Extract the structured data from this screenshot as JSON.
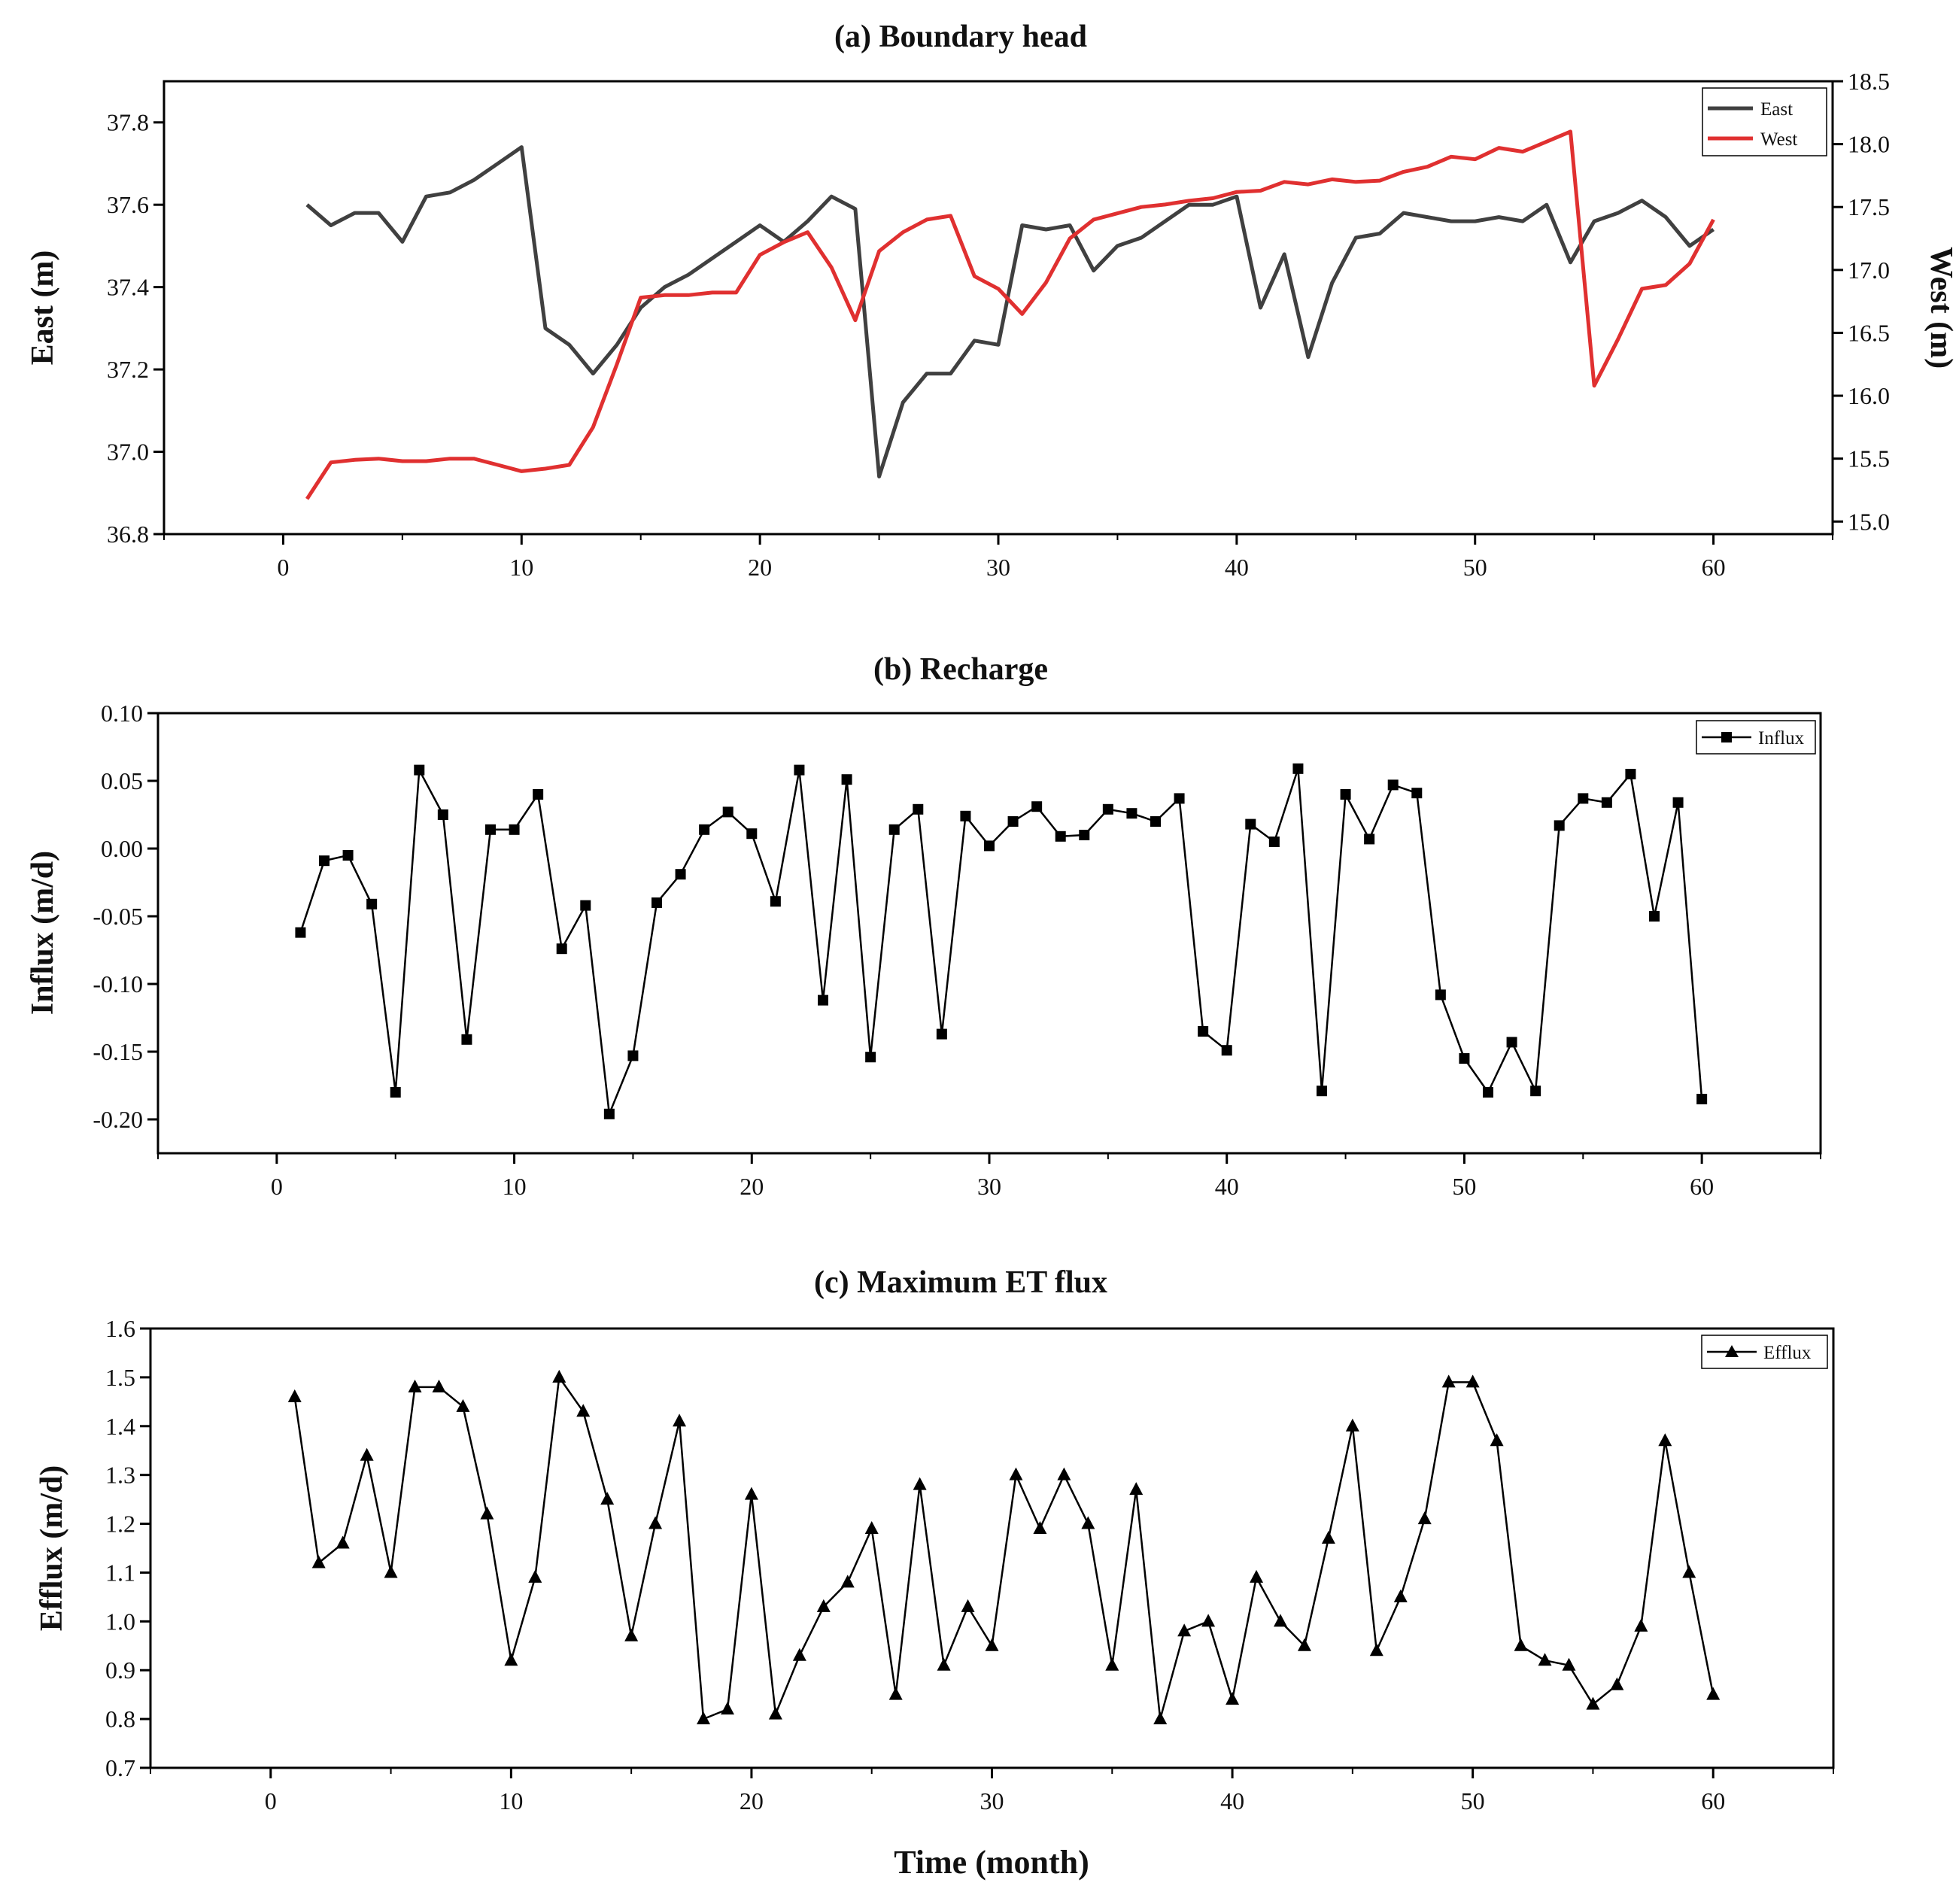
{
  "chart_data": [
    {
      "type": "line",
      "title": "(a) Boundary head",
      "xlabel": "",
      "ylabel": "East (m)",
      "ylabel_right": "West (m)",
      "xlim": [
        -5,
        65
      ],
      "xticks": [
        0,
        10,
        20,
        30,
        40,
        50,
        60
      ],
      "ylim": [
        36.8,
        37.9
      ],
      "yticks": [
        "36.8",
        "37.0",
        "37.2",
        "37.4",
        "37.6",
        "37.8"
      ],
      "ylim_right": [
        14.9,
        18.5
      ],
      "yticks_right": [
        "15.0",
        "15.5",
        "16.0",
        "16.5",
        "17.0",
        "17.5",
        "18.0",
        "18.5"
      ],
      "legend_position": "top-right",
      "x": [
        1,
        2,
        3,
        4,
        5,
        6,
        7,
        8,
        9,
        10,
        11,
        12,
        13,
        14,
        15,
        16,
        17,
        18,
        19,
        20,
        21,
        22,
        23,
        24,
        25,
        26,
        27,
        28,
        29,
        30,
        31,
        32,
        33,
        34,
        35,
        36,
        37,
        38,
        39,
        40,
        41,
        42,
        43,
        44,
        45,
        46,
        47,
        48,
        49,
        50,
        51,
        52,
        53,
        54,
        55,
        56,
        57,
        58,
        59,
        60
      ],
      "series": [
        {
          "name": "East",
          "axis": "left",
          "color": "#404040",
          "values": [
            37.6,
            37.55,
            37.58,
            37.58,
            37.51,
            37.62,
            37.63,
            37.66,
            37.7,
            37.74,
            37.3,
            37.26,
            37.19,
            37.26,
            37.35,
            37.4,
            37.43,
            37.47,
            37.51,
            37.55,
            37.51,
            37.56,
            37.62,
            37.59,
            36.94,
            37.12,
            37.19,
            37.19,
            37.27,
            37.26,
            37.55,
            37.54,
            37.55,
            37.44,
            37.5,
            37.52,
            37.56,
            37.6,
            37.6,
            37.62,
            37.35,
            37.48,
            37.23,
            37.41,
            37.52,
            37.53,
            37.58,
            37.57,
            37.56,
            37.56,
            37.57,
            37.56,
            37.6,
            37.46,
            37.56,
            37.58,
            37.61,
            37.57,
            37.5,
            37.54
          ]
        },
        {
          "name": "West",
          "axis": "right",
          "color": "#e03030",
          "values": [
            15.18,
            15.47,
            15.49,
            15.5,
            15.48,
            15.48,
            15.5,
            15.5,
            15.45,
            15.4,
            15.42,
            15.45,
            15.75,
            16.25,
            16.78,
            16.8,
            16.8,
            16.82,
            16.82,
            17.12,
            17.22,
            17.3,
            17.02,
            16.6,
            17.15,
            17.3,
            17.4,
            17.43,
            16.95,
            16.85,
            16.65,
            16.9,
            17.25,
            17.4,
            17.45,
            17.5,
            17.52,
            17.55,
            17.57,
            17.62,
            17.63,
            17.7,
            17.68,
            17.72,
            17.7,
            17.71,
            17.78,
            17.82,
            17.9,
            17.88,
            17.97,
            17.94,
            18.02,
            18.1,
            16.08,
            16.45,
            16.85,
            16.88,
            17.05,
            17.4
          ]
        }
      ]
    },
    {
      "type": "line",
      "title": "(b) Recharge",
      "xlabel": "",
      "ylabel": "Influx (m/d)",
      "xlim": [
        -5,
        65
      ],
      "xticks": [
        0,
        10,
        20,
        30,
        40,
        50,
        60
      ],
      "ylim": [
        -0.225,
        0.1
      ],
      "yticks": [
        "-0.20",
        "-0.15",
        "-0.10",
        "-0.05",
        "0.00",
        "0.05",
        "0.10"
      ],
      "legend_position": "top-right",
      "x": [
        1,
        2,
        3,
        4,
        5,
        6,
        7,
        8,
        9,
        10,
        11,
        12,
        13,
        14,
        15,
        16,
        17,
        18,
        19,
        20,
        21,
        22,
        23,
        24,
        25,
        26,
        27,
        28,
        29,
        30,
        31,
        32,
        33,
        34,
        35,
        36,
        37,
        38,
        39,
        40,
        41,
        42,
        43,
        44,
        45,
        46,
        47,
        48,
        49,
        50,
        51,
        52,
        53,
        54,
        55,
        56,
        57,
        58,
        59,
        60
      ],
      "series": [
        {
          "name": "Influx",
          "marker": "square",
          "color": "#000000",
          "values": [
            -0.062,
            -0.009,
            -0.005,
            -0.041,
            -0.18,
            0.058,
            0.025,
            -0.141,
            0.014,
            0.014,
            0.04,
            -0.074,
            -0.042,
            -0.196,
            -0.153,
            -0.04,
            -0.019,
            0.014,
            0.027,
            0.011,
            -0.039,
            0.058,
            -0.112,
            0.051,
            -0.154,
            0.014,
            0.029,
            -0.137,
            0.024,
            0.002,
            0.02,
            0.031,
            0.009,
            0.01,
            0.029,
            0.026,
            0.02,
            0.037,
            -0.135,
            -0.149,
            0.018,
            0.005,
            0.059,
            -0.179,
            0.04,
            0.007,
            0.047,
            0.041,
            -0.108,
            -0.155,
            -0.18,
            -0.143,
            -0.179,
            0.017,
            0.037,
            0.034,
            0.055,
            -0.05,
            0.034,
            -0.185
          ]
        }
      ]
    },
    {
      "type": "line",
      "title": "(c) Maximum ET flux",
      "xlabel": "Time (month)",
      "ylabel": "Efflux (m/d)",
      "xlim": [
        -5,
        65
      ],
      "xticks": [
        0,
        10,
        20,
        30,
        40,
        50,
        60
      ],
      "ylim": [
        0.7,
        1.6
      ],
      "yticks": [
        "0.7",
        "0.8",
        "0.9",
        "1.0",
        "1.1",
        "1.2",
        "1.3",
        "1.4",
        "1.5",
        "1.6"
      ],
      "legend_position": "top-right",
      "x": [
        1,
        2,
        3,
        4,
        5,
        6,
        7,
        8,
        9,
        10,
        11,
        12,
        13,
        14,
        15,
        16,
        17,
        18,
        19,
        20,
        21,
        22,
        23,
        24,
        25,
        26,
        27,
        28,
        29,
        30,
        31,
        32,
        33,
        34,
        35,
        36,
        37,
        38,
        39,
        40,
        41,
        42,
        43,
        44,
        45,
        46,
        47,
        48,
        49,
        50,
        51,
        52,
        53,
        54,
        55,
        56,
        57,
        58,
        59,
        60
      ],
      "series": [
        {
          "name": "Efflux",
          "marker": "triangle",
          "color": "#000000",
          "values": [
            1.46,
            1.12,
            1.16,
            1.34,
            1.1,
            1.48,
            1.48,
            1.44,
            1.22,
            0.92,
            1.09,
            1.5,
            1.43,
            1.25,
            0.97,
            1.2,
            1.41,
            0.8,
            0.82,
            1.26,
            0.81,
            0.93,
            1.03,
            1.08,
            1.19,
            0.85,
            1.28,
            0.91,
            1.03,
            0.95,
            1.3,
            1.19,
            1.3,
            1.2,
            0.91,
            1.27,
            0.8,
            0.98,
            1.0,
            0.84,
            1.09,
            1.0,
            0.95,
            1.17,
            1.4,
            0.94,
            1.05,
            1.21,
            1.49,
            1.49,
            1.37,
            0.95,
            0.92,
            0.91,
            0.83,
            0.87,
            0.99,
            1.37,
            1.1,
            0.85
          ]
        }
      ]
    }
  ]
}
